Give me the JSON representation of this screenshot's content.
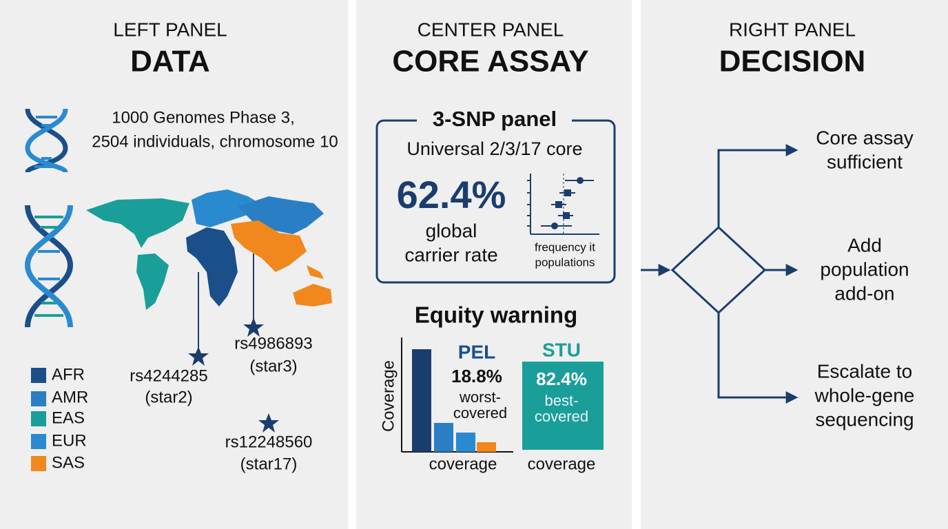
{
  "left": {
    "label": "LEFT PANEL",
    "title": "DATA",
    "source_lines": [
      "1000 Genomes Phase 3,",
      "2504 individuals, chromosome 10"
    ],
    "legend": [
      "AFR",
      "AMR",
      "EAS",
      "EUR",
      "SAS"
    ],
    "snps": [
      {
        "id": "rs4244285",
        "allele": "(star2)"
      },
      {
        "id": "rs4986893",
        "allele": "(star3)"
      },
      {
        "id": "rs12248560",
        "allele": "(star17)"
      }
    ]
  },
  "center": {
    "label": "CENTER PANEL",
    "title": "CORE ASSAY",
    "card_title": "3-SNP panel",
    "card_subtitle": "Universal 2/3/17 core",
    "rate": "62.4%",
    "rate_caption": [
      "global",
      "carrier rate"
    ],
    "plot_caption": [
      "frequency it",
      "populations"
    ],
    "equity_title": "Equity warning",
    "y_axis": "Coverage",
    "worst": {
      "population": "PEL",
      "value": "18.8%",
      "caption": [
        "worst-",
        "covered"
      ],
      "axis": "coverage"
    },
    "best": {
      "population": "STU",
      "value": "82.4%",
      "caption": [
        "best-",
        "covered"
      ],
      "axis": "coverage"
    }
  },
  "right": {
    "label": "RIGHT PANEL",
    "title": "DECISION",
    "outcomes": [
      [
        "Core assay",
        "sufficient"
      ],
      [
        "Add",
        "population",
        "add-on"
      ],
      [
        "Escalate to",
        "whole-gene",
        "sequencing"
      ]
    ]
  }
}
